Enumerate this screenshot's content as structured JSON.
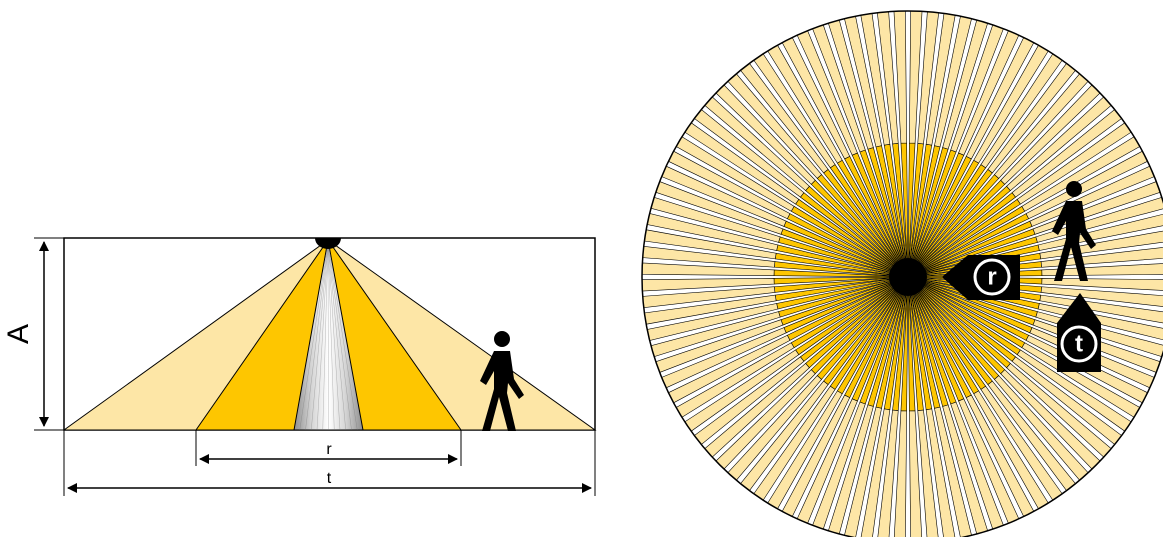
{
  "side_view": {
    "height_label": "A",
    "reach_label": "r",
    "total_label": "t"
  },
  "top_view": {
    "reach_badge": "r",
    "total_badge": "t"
  },
  "colors": {
    "outer_zone": "#fde6a6",
    "inner_zone": "#fec600",
    "core_zone": "#b9b9b9",
    "outline": "#000000",
    "background": "#ffffff"
  },
  "icons": {
    "sensor": "sensor-dome-icon",
    "person": "walking-person-icon"
  }
}
